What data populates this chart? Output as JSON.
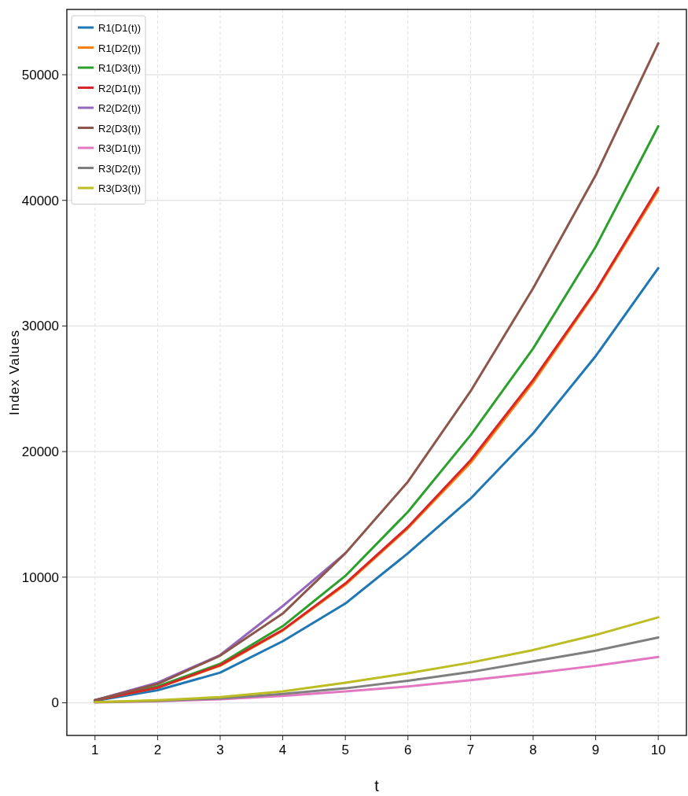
{
  "chart_data": {
    "type": "line",
    "xlabel": "t",
    "ylabel": "Index Values",
    "x": [
      1,
      2,
      3,
      4,
      5,
      6,
      7,
      8,
      9,
      10
    ],
    "xlim": [
      0.55,
      10.45
    ],
    "ylim": [
      -2600,
      55200
    ],
    "xticks": [
      1,
      2,
      3,
      4,
      5,
      6,
      7,
      8,
      9,
      10
    ],
    "yticks": [
      0,
      10000,
      20000,
      30000,
      40000,
      50000
    ],
    "grid": true,
    "legend": "top left",
    "series": [
      {
        "name": "R1(D1(t))",
        "color": "#1f77b4",
        "values": [
          150,
          1000,
          2400,
          4900,
          7900,
          11900,
          16250,
          21450,
          27600,
          34600
        ]
      },
      {
        "name": "R1(D2(t))",
        "color": "#ff7f0e",
        "values": [
          200,
          1200,
          2950,
          5750,
          9400,
          13900,
          19100,
          25500,
          32700,
          40800
        ]
      },
      {
        "name": "R1(D3(t))",
        "color": "#2ca02c",
        "values": [
          200,
          1300,
          3100,
          6100,
          10100,
          15200,
          21300,
          28200,
          36300,
          45900
        ]
      },
      {
        "name": "R2(D1(t))",
        "color": "#d62728",
        "values": [
          200,
          1200,
          3000,
          5800,
          9500,
          14000,
          19300,
          25700,
          32800,
          41000
        ]
      },
      {
        "name": "R2(D2(t))",
        "color": "#9467bd",
        "values": [
          200,
          1600,
          3800,
          7700,
          11900,
          null,
          null,
          null,
          null,
          null
        ]
      },
      {
        "name": "R2(D3(t))",
        "color": "#8c564b",
        "values": [
          200,
          1500,
          3750,
          7100,
          11900,
          17600,
          24800,
          33000,
          42000,
          52500
        ]
      },
      {
        "name": "R3(D1(t))",
        "color": "#e377c2",
        "values": [
          30,
          120,
          280,
          550,
          900,
          1300,
          1800,
          2350,
          2950,
          3650
        ]
      },
      {
        "name": "R3(D2(t))",
        "color": "#7f7f7f",
        "values": [
          40,
          150,
          350,
          700,
          1150,
          1750,
          2450,
          3300,
          4150,
          5200
        ]
      },
      {
        "name": "R3(D3(t))",
        "color": "#bcbd22",
        "values": [
          50,
          200,
          450,
          900,
          1600,
          2350,
          3200,
          4200,
          5400,
          6800
        ]
      }
    ]
  }
}
